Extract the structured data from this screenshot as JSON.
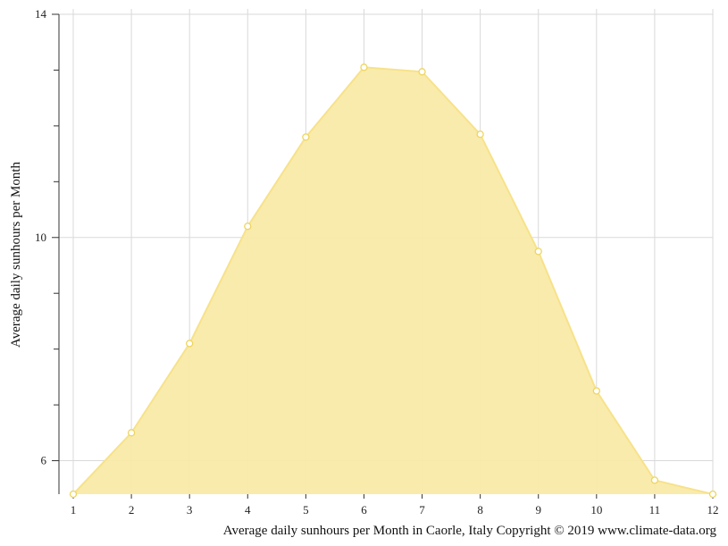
{
  "chart_data": {
    "type": "area",
    "title": "",
    "xlabel": "Average daily sunhours per Month in Caorle, Italy Copyright © 2019 www.climate-data.org",
    "ylabel": "Average daily sunhours per Month",
    "x": [
      1,
      2,
      3,
      4,
      5,
      6,
      7,
      8,
      9,
      10,
      11,
      12
    ],
    "x_tick_labels": [
      "1",
      "2",
      "3",
      "4",
      "5",
      "6",
      "7",
      "8",
      "9",
      "10",
      "11",
      "12"
    ],
    "y_tick_labels": [
      "6",
      "10",
      "14"
    ],
    "series": [
      {
        "values": [
          5.4,
          6.5,
          8.1,
          10.2,
          11.8,
          13.05,
          12.97,
          11.85,
          9.75,
          7.25,
          5.65,
          5.4
        ]
      }
    ],
    "xlim": [
      1,
      12
    ],
    "ylim": [
      5.4,
      14
    ],
    "y_ticks_major": [
      6,
      10,
      14
    ],
    "y_ticks_minor": [
      7,
      8,
      9,
      11,
      12,
      13
    ],
    "grid": true,
    "colors": {
      "area_fill": "#f9eaa6",
      "line": "#f7e28a",
      "marker_edge": "#eed55e",
      "marker_fill": "#ffffff",
      "grid": "#d9d9d9",
      "axis": "#333333"
    }
  }
}
